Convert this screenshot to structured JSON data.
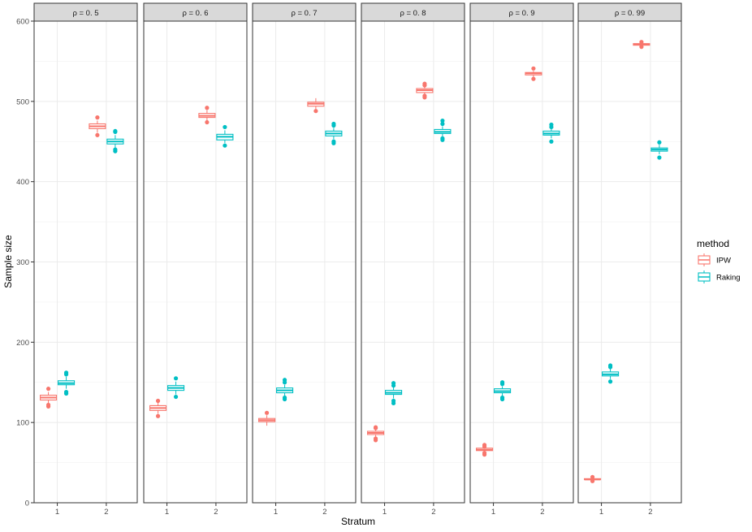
{
  "chart_data": {
    "type": "boxplot",
    "xlabel": "Stratum",
    "ylabel": "Sample size",
    "ylim": [
      0,
      600
    ],
    "yticks": [
      0,
      100,
      200,
      300,
      400,
      500,
      600
    ],
    "categories": [
      "1",
      "2"
    ],
    "legend": {
      "title": "method",
      "position": "right",
      "entries": [
        {
          "name": "IPW",
          "color": "#F8766D"
        },
        {
          "name": "Raking",
          "color": "#00BFC4"
        }
      ]
    },
    "panels": [
      {
        "label": "ρ = 0. 5",
        "groups": [
          {
            "stratum": "1",
            "method": "IPW",
            "min": 124,
            "q1": 128,
            "median": 131,
            "q3": 134,
            "max": 138,
            "outliers": [
              120,
              122,
              142
            ]
          },
          {
            "stratum": "1",
            "method": "Raking",
            "min": 142,
            "q1": 147,
            "median": 149,
            "q3": 152,
            "max": 157,
            "outliers": [
              136,
              138,
              160,
              162
            ]
          },
          {
            "stratum": "2",
            "method": "IPW",
            "min": 461,
            "q1": 466,
            "median": 469,
            "q3": 472,
            "max": 476,
            "outliers": [
              458,
              480
            ]
          },
          {
            "stratum": "2",
            "method": "Raking",
            "min": 442,
            "q1": 447,
            "median": 450,
            "q3": 453,
            "max": 458,
            "outliers": [
              438,
              440,
              462,
              463
            ]
          }
        ]
      },
      {
        "label": "ρ = 0. 6",
        "groups": [
          {
            "stratum": "1",
            "method": "IPW",
            "min": 111,
            "q1": 115,
            "median": 118,
            "q3": 121,
            "max": 125,
            "outliers": [
              108,
              127
            ]
          },
          {
            "stratum": "1",
            "method": "Raking",
            "min": 135,
            "q1": 140,
            "median": 143,
            "q3": 146,
            "max": 151,
            "outliers": [
              132,
              155
            ]
          },
          {
            "stratum": "2",
            "method": "IPW",
            "min": 476,
            "q1": 480,
            "median": 482,
            "q3": 485,
            "max": 489,
            "outliers": [
              474,
              492
            ]
          },
          {
            "stratum": "2",
            "method": "Raking",
            "min": 448,
            "q1": 452,
            "median": 456,
            "q3": 459,
            "max": 464,
            "outliers": [
              445,
              468
            ]
          }
        ]
      },
      {
        "label": "ρ = 0. 7",
        "groups": [
          {
            "stratum": "1",
            "method": "IPW",
            "min": 96,
            "q1": 101,
            "median": 103,
            "q3": 105,
            "max": 109,
            "outliers": [
              112
            ]
          },
          {
            "stratum": "1",
            "method": "Raking",
            "min": 133,
            "q1": 137,
            "median": 140,
            "q3": 143,
            "max": 147,
            "outliers": [
              129,
              131,
              150,
              153
            ]
          },
          {
            "stratum": "2",
            "method": "IPW",
            "min": 490,
            "q1": 494,
            "median": 497,
            "q3": 499,
            "max": 504,
            "outliers": [
              488
            ]
          },
          {
            "stratum": "2",
            "method": "Raking",
            "min": 453,
            "q1": 457,
            "median": 460,
            "q3": 463,
            "max": 467,
            "outliers": [
              448,
              450,
              470,
              472
            ]
          }
        ]
      },
      {
        "label": "ρ = 0. 8",
        "groups": [
          {
            "stratum": "1",
            "method": "IPW",
            "min": 82,
            "q1": 85,
            "median": 87,
            "q3": 89,
            "max": 92,
            "outliers": [
              78,
              80,
              93,
              94
            ]
          },
          {
            "stratum": "1",
            "method": "Raking",
            "min": 130,
            "q1": 135,
            "median": 137,
            "q3": 140,
            "max": 144,
            "outliers": [
              124,
              127,
              146,
              149
            ]
          },
          {
            "stratum": "2",
            "method": "IPW",
            "min": 508,
            "q1": 511,
            "median": 514,
            "q3": 516,
            "max": 519,
            "outliers": [
              505,
              507,
              520,
              522
            ]
          },
          {
            "stratum": "2",
            "method": "Raking",
            "min": 456,
            "q1": 460,
            "median": 462,
            "q3": 465,
            "max": 469,
            "outliers": [
              452,
              454,
              472,
              476
            ]
          }
        ]
      },
      {
        "label": "ρ = 0. 9",
        "groups": [
          {
            "stratum": "1",
            "method": "IPW",
            "min": 63,
            "q1": 65,
            "median": 66,
            "q3": 68,
            "max": 69,
            "outliers": [
              60,
              62,
              70,
              72
            ]
          },
          {
            "stratum": "1",
            "method": "Raking",
            "min": 133,
            "q1": 137,
            "median": 139,
            "q3": 142,
            "max": 145,
            "outliers": [
              129,
              131,
              148,
              150
            ]
          },
          {
            "stratum": "2",
            "method": "IPW",
            "min": 530,
            "q1": 533,
            "median": 535,
            "q3": 536,
            "max": 538,
            "outliers": [
              528,
              541
            ]
          },
          {
            "stratum": "2",
            "method": "Raking",
            "min": 454,
            "q1": 458,
            "median": 460,
            "q3": 463,
            "max": 466,
            "outliers": [
              450,
              468,
              471
            ]
          }
        ]
      },
      {
        "label": "ρ = 0. 99",
        "groups": [
          {
            "stratum": "1",
            "method": "IPW",
            "min": 28,
            "q1": 29,
            "median": 29,
            "q3": 30,
            "max": 31,
            "outliers": [
              27,
              32
            ]
          },
          {
            "stratum": "1",
            "method": "Raking",
            "min": 154,
            "q1": 158,
            "median": 160,
            "q3": 163,
            "max": 167,
            "outliers": [
              151,
              169,
              171
            ]
          },
          {
            "stratum": "2",
            "method": "IPW",
            "min": 569,
            "q1": 570,
            "median": 571,
            "q3": 572,
            "max": 573,
            "outliers": [
              568,
              574
            ]
          },
          {
            "stratum": "2",
            "method": "Raking",
            "min": 434,
            "q1": 438,
            "median": 440,
            "q3": 442,
            "max": 446,
            "outliers": [
              430,
              449
            ]
          }
        ]
      }
    ]
  }
}
